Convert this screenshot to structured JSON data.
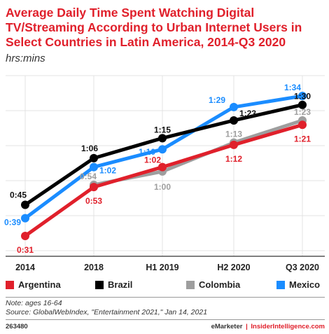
{
  "title": "Average Daily Time Spent Watching Digital TV/Streaming According to Urban Internet Users in Select Countries in Latin America, 2014-Q3 2020",
  "subtitle": "hrs:mins",
  "chart_data": {
    "type": "line",
    "categories": [
      "2014",
      "2018",
      "H1 2019",
      "H2 2020",
      "Q3 2020"
    ],
    "unit": "minutes",
    "ylim": [
      25,
      100
    ],
    "grid": true,
    "legend_position": "bottom",
    "series": [
      {
        "name": "Argentina",
        "color": "#e0202b",
        "values": [
          31,
          53,
          62,
          72,
          81
        ],
        "labels": [
          "0:31",
          "0:53",
          "1:02",
          "1:12",
          "1:21"
        ]
      },
      {
        "name": "Brazil",
        "color": "#000000",
        "values": [
          45,
          66,
          75,
          83,
          90
        ],
        "labels": [
          "0:45",
          "1:06",
          "1:15",
          "1:23",
          "1:30"
        ]
      },
      {
        "name": "Colombia",
        "color": "#9e9e9e",
        "values": [
          null,
          54,
          60,
          73,
          83
        ],
        "labels": [
          "",
          "0:54",
          "1:00",
          "1:13",
          "1:23"
        ]
      },
      {
        "name": "Mexico",
        "color": "#1a8cff",
        "values": [
          39,
          62,
          70,
          89,
          94
        ],
        "labels": [
          "0:39",
          "1:02",
          "1:10",
          "1:29",
          "1:34"
        ]
      }
    ]
  },
  "legend": [
    {
      "name": "Argentina",
      "color": "#e0202b"
    },
    {
      "name": "Brazil",
      "color": "#000000"
    },
    {
      "name": "Colombia",
      "color": "#9e9e9e"
    },
    {
      "name": "Mexico",
      "color": "#1a8cff"
    }
  ],
  "footer": {
    "note": "Note: ages 16-64",
    "source": "Source: GlobalWebIndex, \"Entertainment 2021,\" Jan 14, 2021",
    "code": "263480",
    "brand_emarketer": "eMarketer",
    "brand_sep": "|",
    "brand_ii": "InsiderIntelligence.com"
  }
}
